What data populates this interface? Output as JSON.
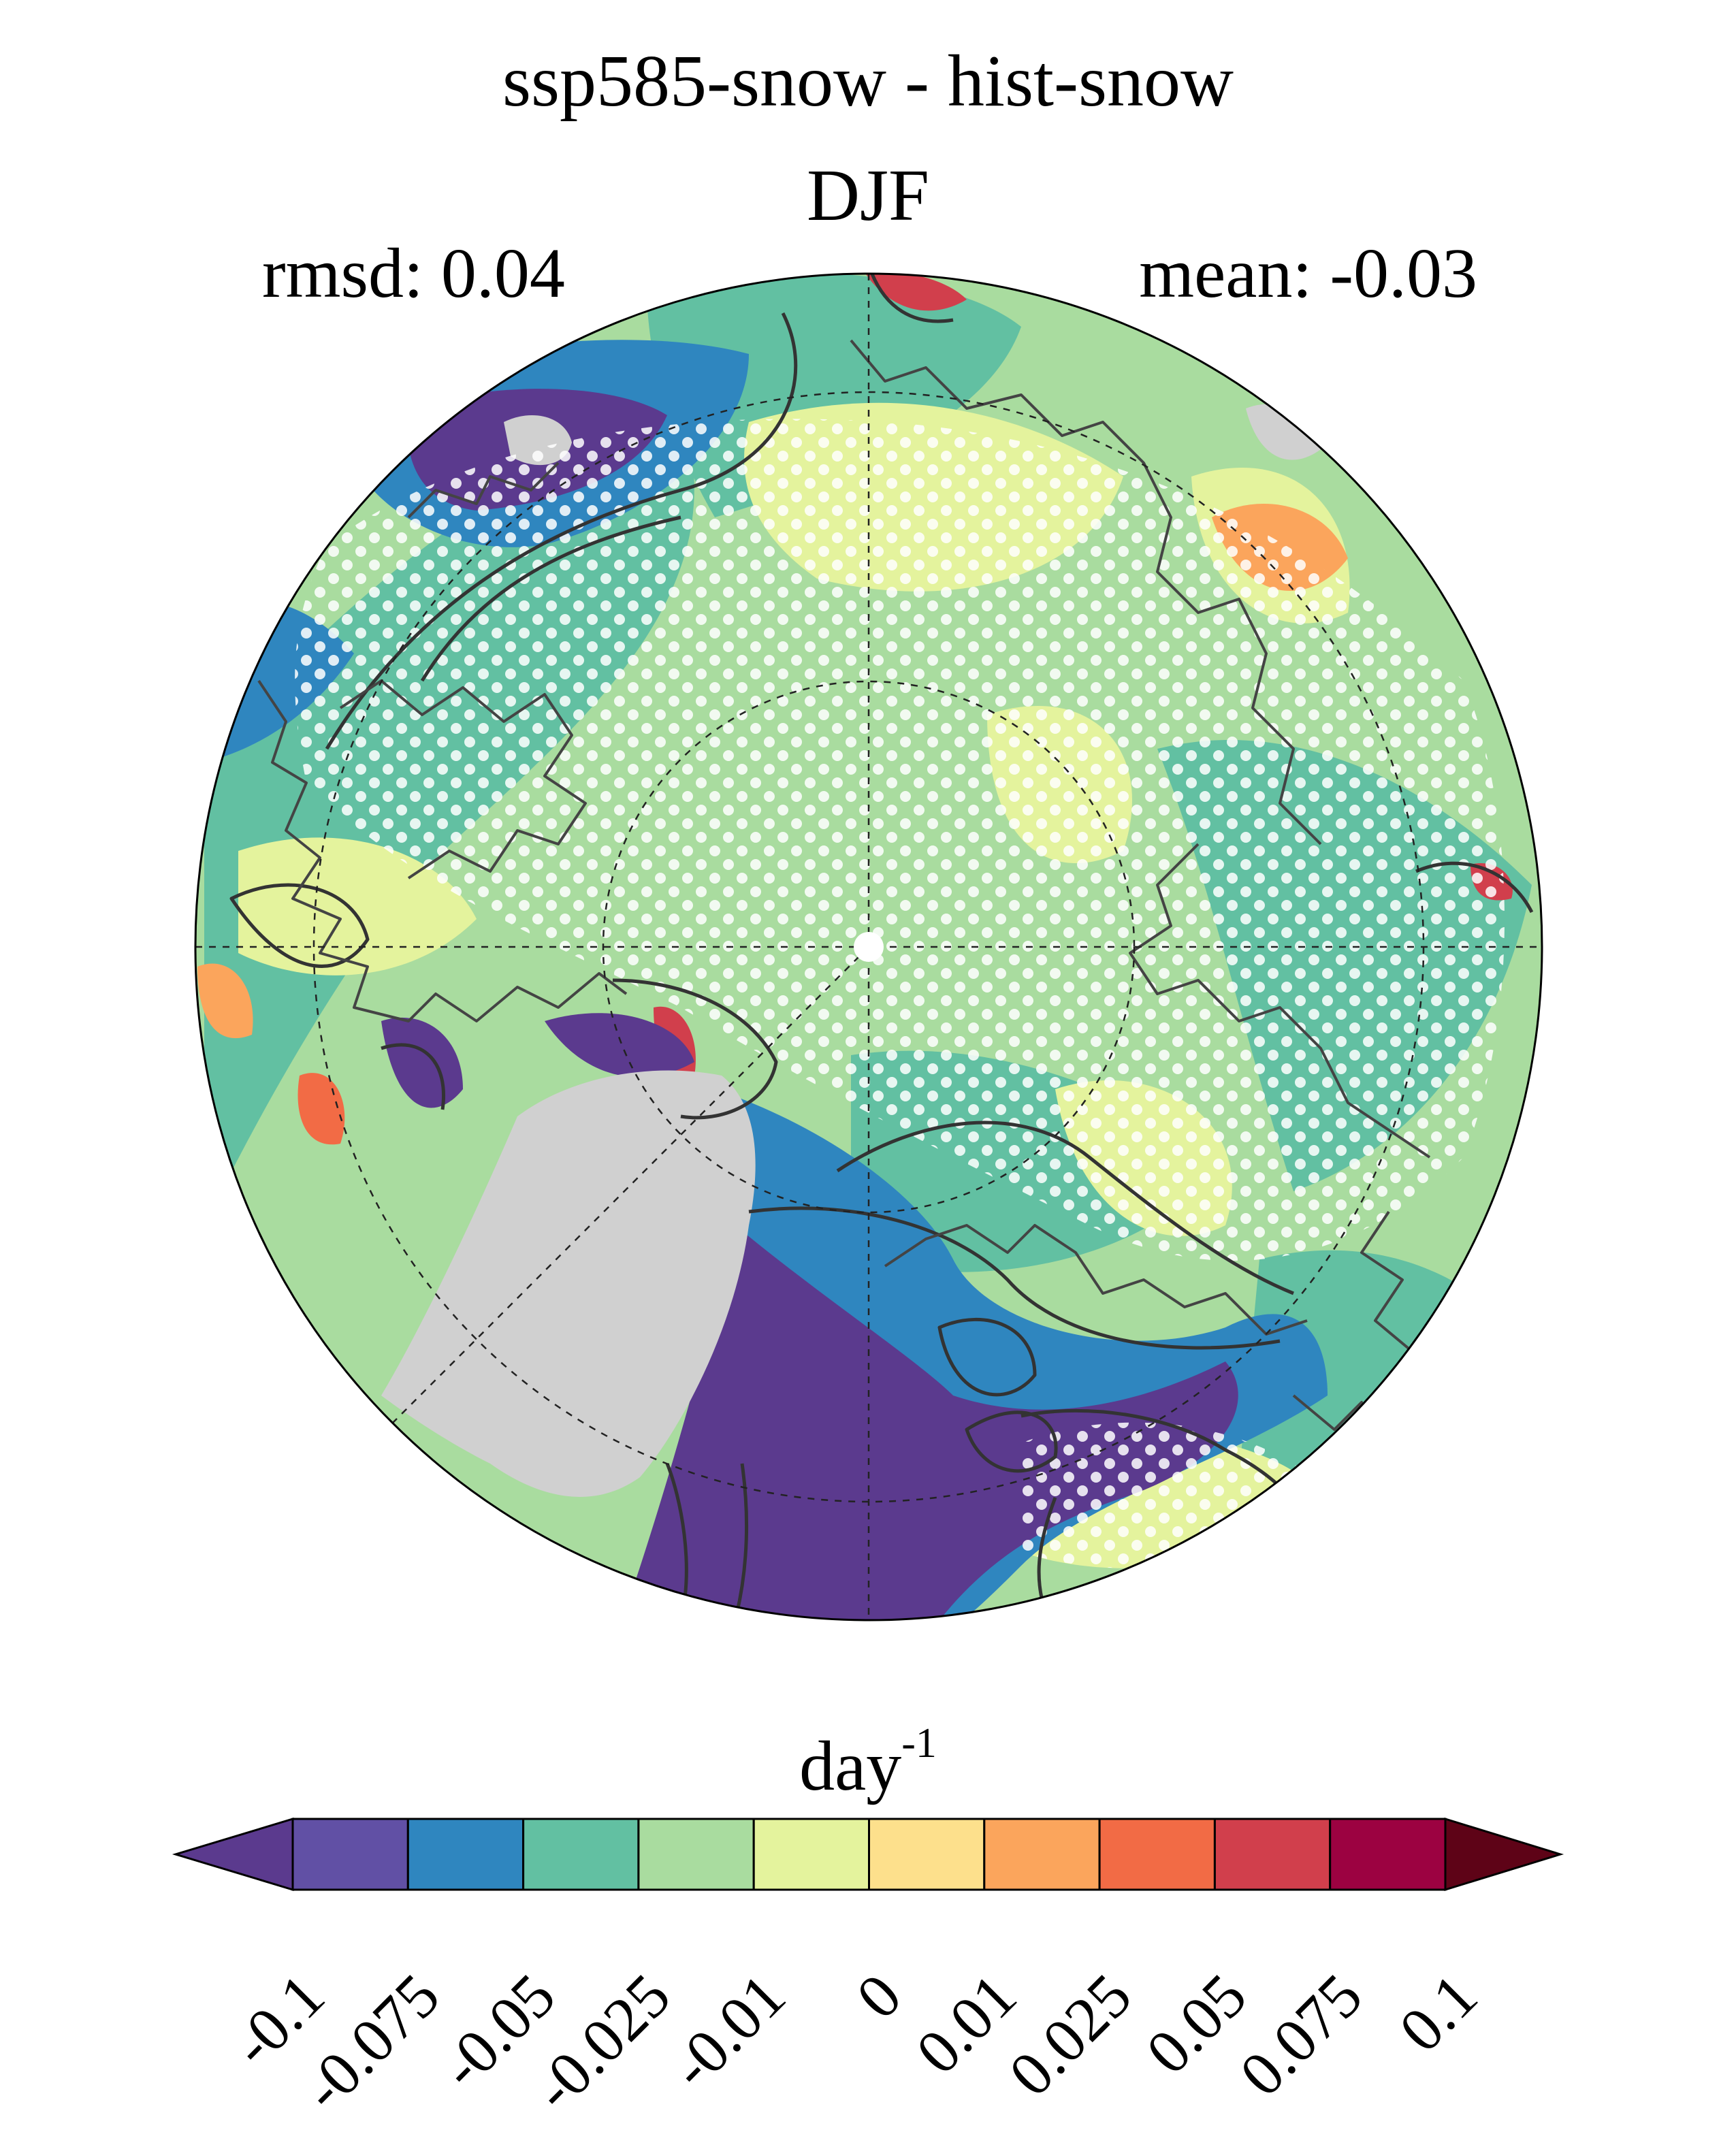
{
  "title": "ssp585-snow - hist-snow",
  "subtitle": "DJF",
  "stats": {
    "rmsd": "rmsd: 0.04",
    "mean": "mean: -0.03"
  },
  "units": {
    "base": "day",
    "exponent": "-1"
  },
  "colorbar": {
    "ticks": [
      "-0.1",
      "-0.075",
      "-0.05",
      "-0.025",
      "-0.01",
      "0",
      "0.01",
      "0.025",
      "0.05",
      "0.075",
      "0.1"
    ],
    "colors": [
      "#5b3a8e",
      "#6150a5",
      "#2f86bf",
      "#62c0a2",
      "#a9dc9f",
      "#e4f39d",
      "#fde08c",
      "#fba55c",
      "#f26b45",
      "#d13f4c",
      "#9c0241",
      "#5e0317"
    ]
  },
  "map_colors": {
    "land_mask": "#d0d0d0",
    "contour": "#333333",
    "stipple": "#ffffff"
  }
}
